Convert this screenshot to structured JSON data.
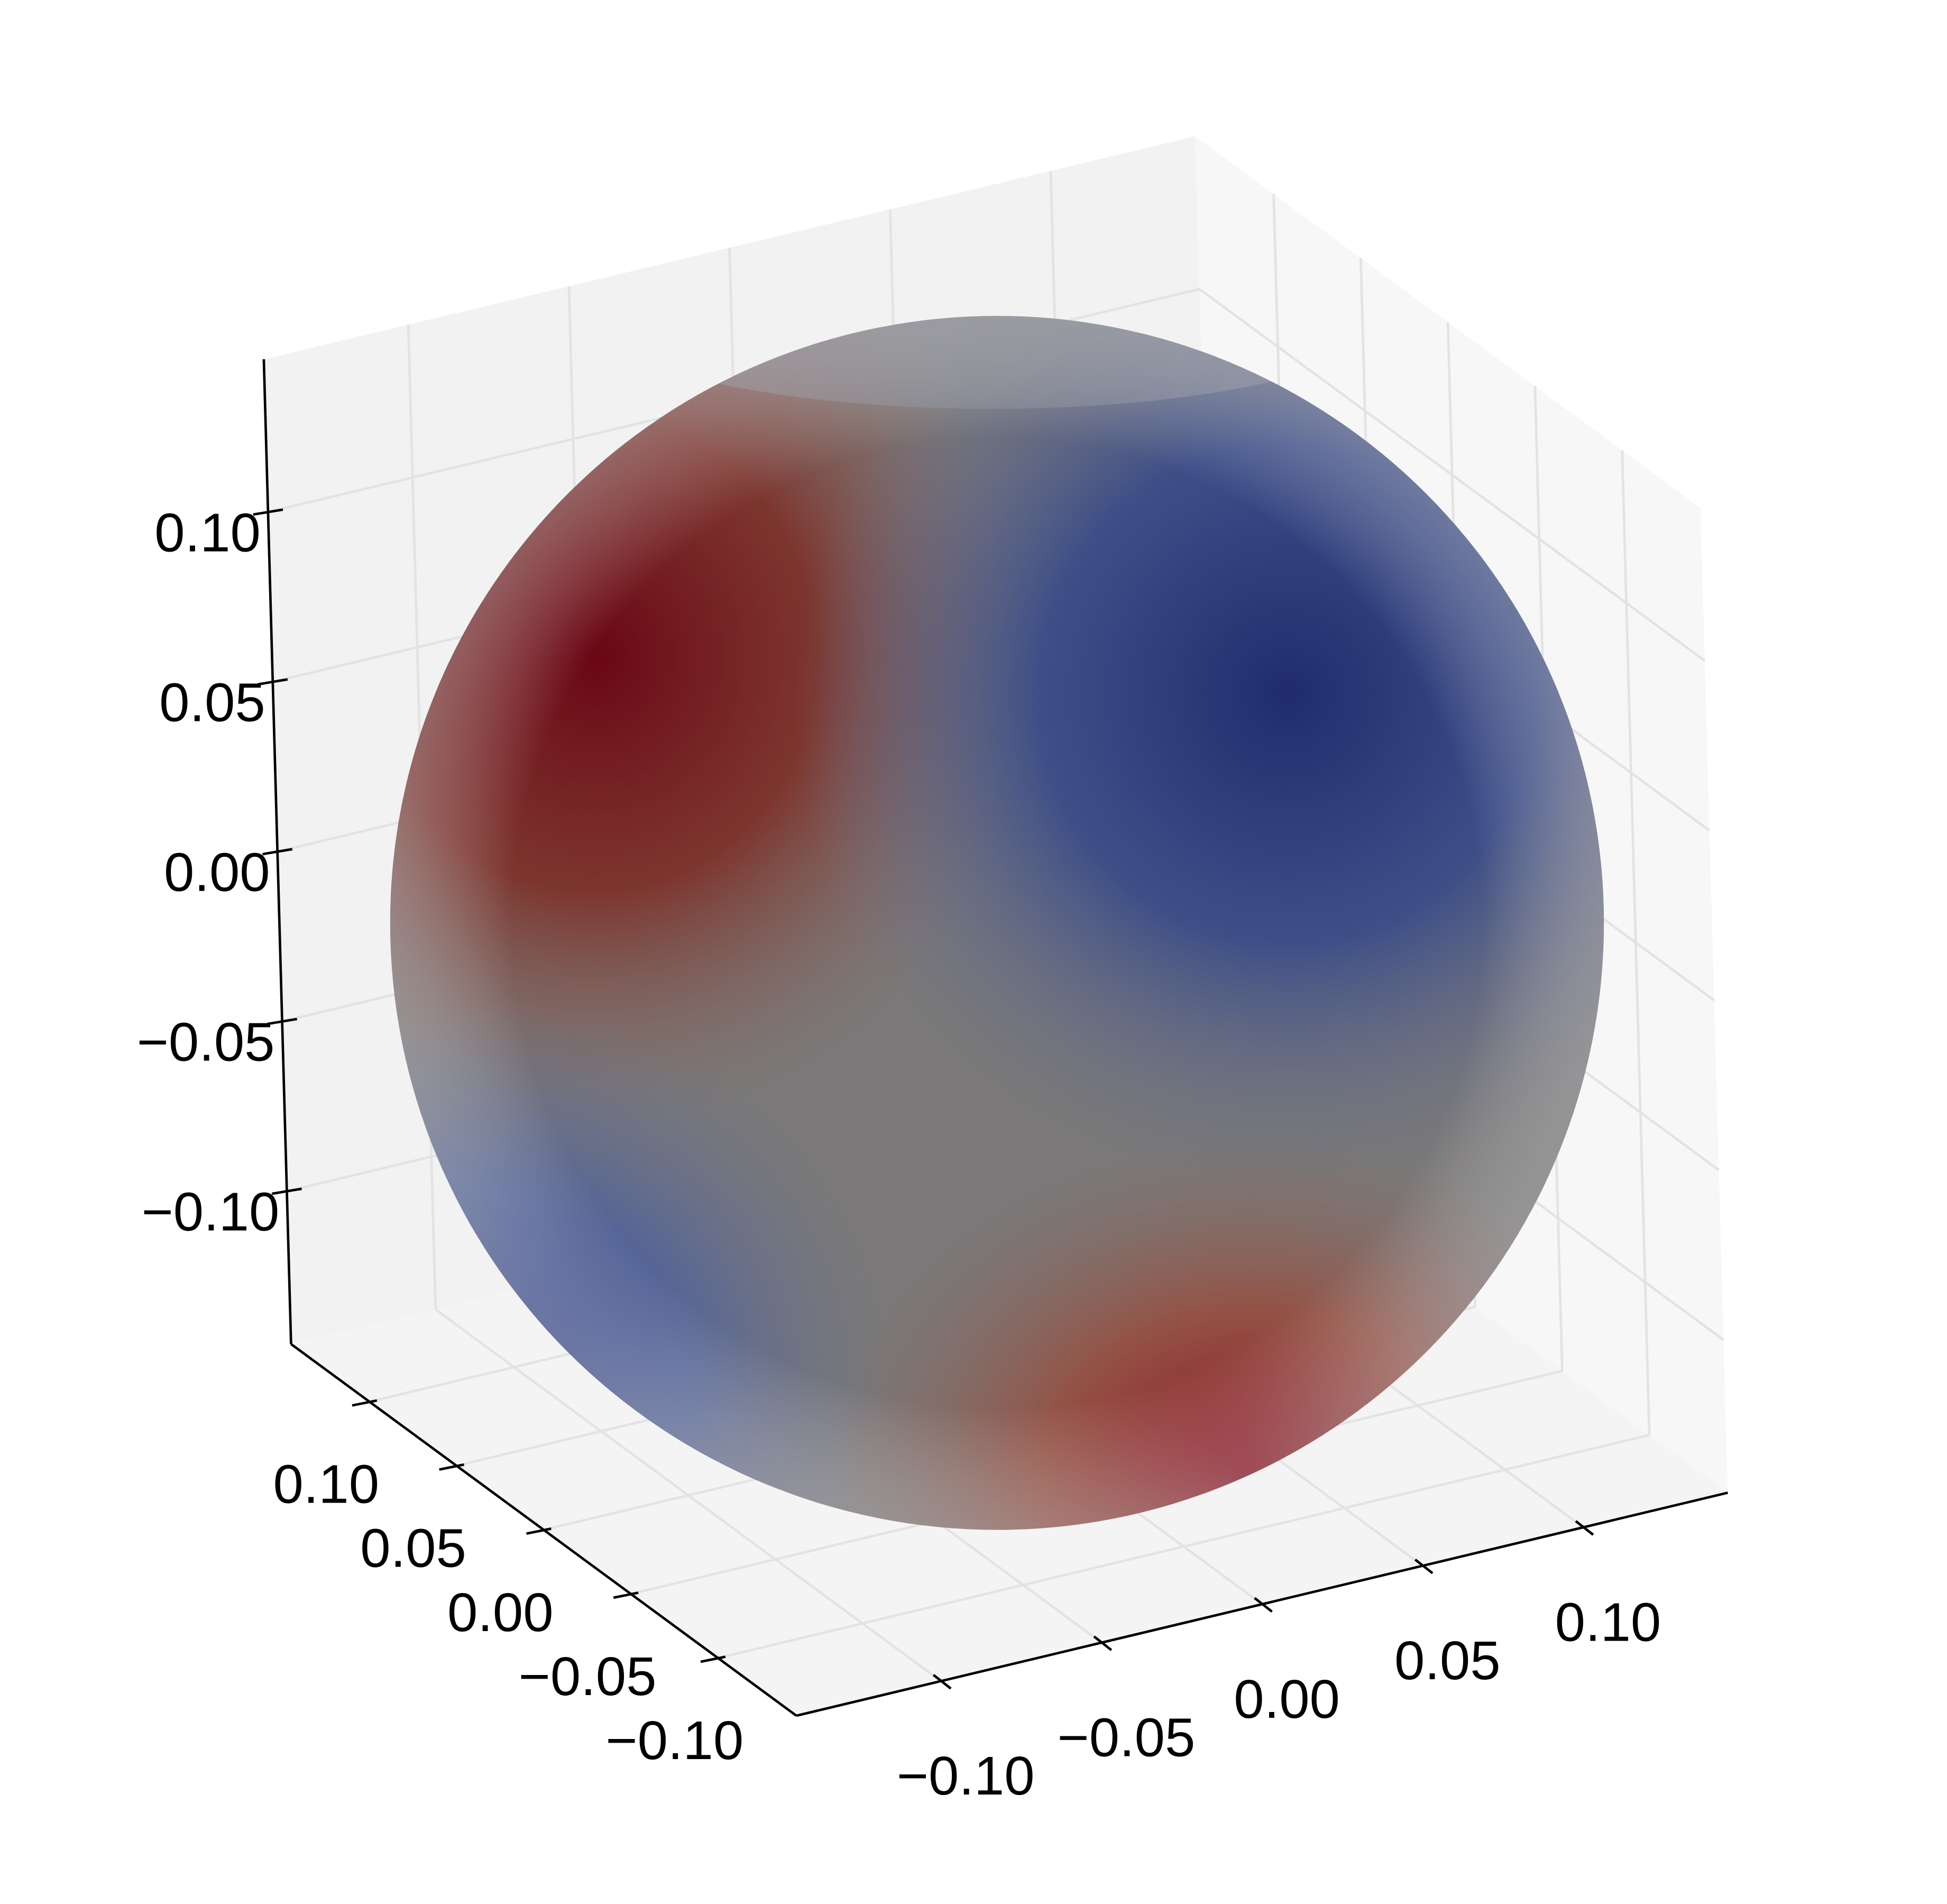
{
  "chart_data": {
    "type": "surface3d",
    "xlim": [
      -0.145,
      0.145
    ],
    "ylim": [
      -0.145,
      0.145
    ],
    "zlim": [
      -0.145,
      0.145
    ],
    "xticks": [
      {
        "value": -0.1,
        "label": "−0.10"
      },
      {
        "value": -0.05,
        "label": "−0.05"
      },
      {
        "value": 0,
        "label": "0.00"
      },
      {
        "value": 0.05,
        "label": "0.05"
      },
      {
        "value": 0.1,
        "label": "0.10"
      }
    ],
    "yticks": [
      {
        "value": -0.1,
        "label": "−0.10"
      },
      {
        "value": -0.05,
        "label": "−0.05"
      },
      {
        "value": 0,
        "label": "0.00"
      },
      {
        "value": 0.05,
        "label": "0.05"
      },
      {
        "value": 0.1,
        "label": "0.10"
      }
    ],
    "zticks": [
      {
        "value": -0.1,
        "label": "−0.10"
      },
      {
        "value": -0.05,
        "label": "−0.05"
      },
      {
        "value": 0,
        "label": "0.00"
      },
      {
        "value": 0.05,
        "label": "0.05"
      },
      {
        "value": 0.1,
        "label": "0.10"
      }
    ],
    "grid": true
  }
}
